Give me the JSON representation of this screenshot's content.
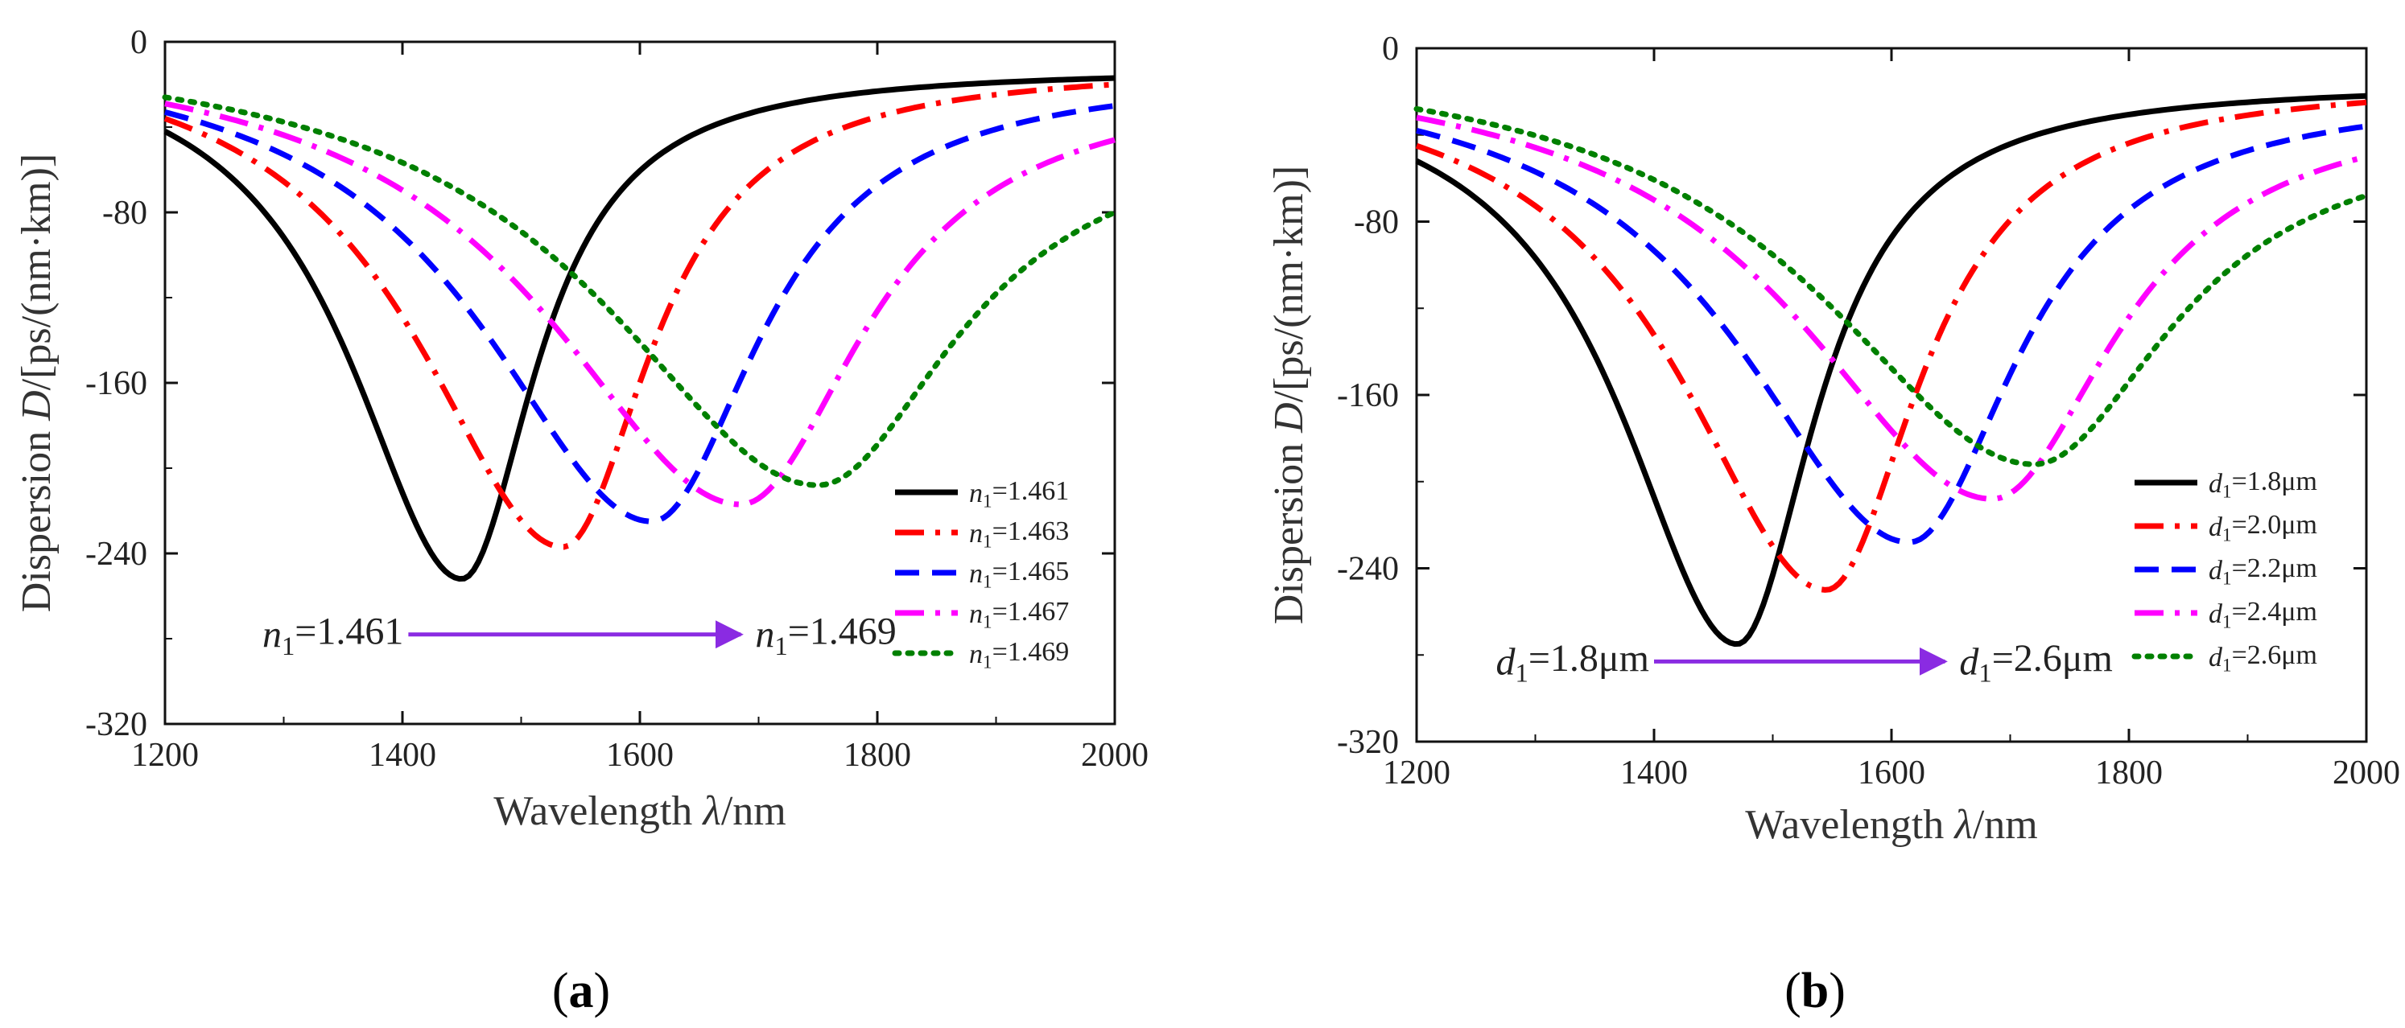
{
  "chart_data": [
    {
      "type": "line",
      "panel_label": "a",
      "xlabel": "Wavelength λ/nm",
      "ylabel": "Dispersion D/[ps/(nm·km)]",
      "xlim": [
        1200,
        2000
      ],
      "ylim": [
        -320,
        0
      ],
      "xticks": [
        1200,
        1400,
        1600,
        1800,
        2000
      ],
      "yticks": [
        0,
        -80,
        -160,
        -240,
        -320
      ],
      "legend_position": "bottom-right",
      "annotation": {
        "from": "n1=1.461",
        "to": "n1=1.469",
        "from_wavelength": 1405,
        "to_wavelength": 1685,
        "y": -278
      },
      "series": [
        {
          "name": "n1=1.461",
          "color": "#000000",
          "style": "solid",
          "min_x": 1450,
          "min_y": -252,
          "y_start": -42,
          "y_end": -17,
          "left_width": 115,
          "right_width": 75
        },
        {
          "name": "n1=1.463",
          "color": "#ff0000",
          "style": "dashdot",
          "min_x": 1535,
          "min_y": -237,
          "y_start": -36,
          "y_end": -20,
          "left_width": 150,
          "right_width": 90
        },
        {
          "name": "n1=1.465",
          "color": "#0000ff",
          "style": "dash",
          "min_x": 1610,
          "min_y": -225,
          "y_start": -33,
          "y_end": -30,
          "left_width": 175,
          "right_width": 110
        },
        {
          "name": "n1=1.467",
          "color": "#ff00ff",
          "style": "dashdot",
          "min_x": 1685,
          "min_y": -217,
          "y_start": -29,
          "y_end": -46,
          "left_width": 200,
          "right_width": 125
        },
        {
          "name": "n1=1.469",
          "color": "#008000",
          "style": "dot",
          "min_x": 1750,
          "min_y": -208,
          "y_start": -26,
          "y_end": -80,
          "left_width": 220,
          "right_width": 140
        }
      ]
    },
    {
      "type": "line",
      "panel_label": "b",
      "xlabel": "Wavelength λ/nm",
      "ylabel": "Dispersion D/[ps/(nm·km)]",
      "xlim": [
        1200,
        2000
      ],
      "ylim": [
        -320,
        0
      ],
      "xticks": [
        1200,
        1400,
        1600,
        1800,
        2000
      ],
      "yticks": [
        0,
        -80,
        -160,
        -240,
        -320
      ],
      "legend_position": "bottom-right",
      "annotation": {
        "from": "d1=1.8μm",
        "to": "d1=2.6μm",
        "from_wavelength": 1400,
        "to_wavelength": 1645,
        "y": -283
      },
      "series": [
        {
          "name": "d1=1.8μm",
          "color": "#000000",
          "style": "solid",
          "min_x": 1470,
          "min_y": -275,
          "y_start": -52,
          "y_end": -22,
          "left_width": 120,
          "right_width": 80
        },
        {
          "name": "d1=2.0μm",
          "color": "#ff0000",
          "style": "dashdot",
          "min_x": 1545,
          "min_y": -250,
          "y_start": -45,
          "y_end": -25,
          "left_width": 150,
          "right_width": 95
        },
        {
          "name": "d1=2.2μm",
          "color": "#0000ff",
          "style": "dash",
          "min_x": 1615,
          "min_y": -228,
          "y_start": -38,
          "y_end": -36,
          "left_width": 175,
          "right_width": 110
        },
        {
          "name": "d1=2.4μm",
          "color": "#ff00ff",
          "style": "dashdot",
          "min_x": 1685,
          "min_y": -208,
          "y_start": -32,
          "y_end": -50,
          "left_width": 200,
          "right_width": 125
        },
        {
          "name": "d1=2.6μm",
          "color": "#008000",
          "style": "dot",
          "min_x": 1720,
          "min_y": -192,
          "y_start": -28,
          "y_end": -68,
          "left_width": 220,
          "right_width": 140
        }
      ]
    }
  ]
}
